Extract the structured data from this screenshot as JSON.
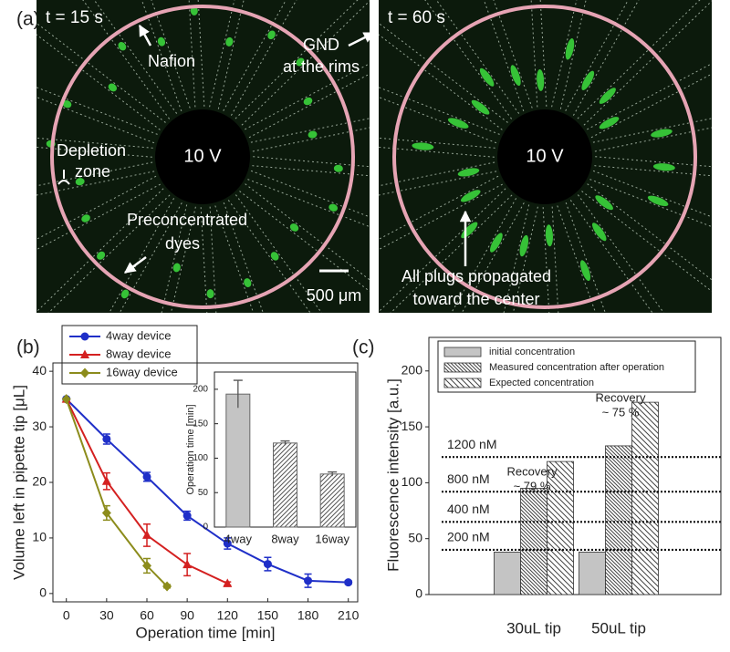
{
  "panel_labels": [
    "(a)",
    "(b)",
    "(c)"
  ],
  "images": [
    {
      "time_label": "t = 15 s",
      "center_label": "10 V",
      "scale_bar": "500 μm",
      "annotations": [
        {
          "lines": [
            "Nafion"
          ]
        },
        {
          "lines": [
            "GND",
            "at the rims"
          ]
        },
        {
          "lines": [
            "Depletion",
            "zone"
          ]
        },
        {
          "lines": [
            "Preconcentrated",
            "dyes"
          ]
        }
      ]
    },
    {
      "time_label": "t = 60 s",
      "center_label": "10 V",
      "annotations": [
        {
          "lines": [
            "All plugs propagated",
            "toward the center"
          ]
        }
      ]
    }
  ],
  "chart_data": [
    {
      "type": "line",
      "x_label": "Operation time [min]",
      "y_label": "Volume left in pipette tip [μL]",
      "xlim": [
        -10,
        217
      ],
      "xticks": [
        0,
        30,
        60,
        90,
        120,
        150,
        180,
        210
      ],
      "ylim": [
        -1.5,
        41.5
      ],
      "yticks": [
        0,
        10,
        20,
        30,
        40
      ],
      "series": [
        {
          "name": "4way device",
          "color": "#1f2fc8",
          "marker": "circle",
          "x": [
            0,
            30,
            60,
            90,
            120,
            150,
            180,
            210
          ],
          "values": [
            35,
            27.8,
            21,
            14,
            9,
            5.3,
            2.3,
            2
          ],
          "errors": [
            0,
            0.9,
            0.8,
            0.8,
            1,
            1.2,
            1.2,
            0.3
          ]
        },
        {
          "name": "8way device",
          "color": "#d42020",
          "marker": "triangle",
          "x": [
            0,
            30,
            60,
            90,
            120
          ],
          "values": [
            35,
            20.2,
            10.5,
            5.2,
            1.8
          ],
          "errors": [
            0,
            1.5,
            2,
            2,
            0.3
          ]
        },
        {
          "name": "16way device",
          "color": "#8c8c1c",
          "marker": "diamond",
          "x": [
            0,
            30,
            60,
            75
          ],
          "values": [
            35,
            14.5,
            5,
            1.3
          ],
          "errors": [
            0,
            1.3,
            1.3,
            0.3
          ]
        }
      ]
    },
    {
      "type": "bar",
      "y_label": "Operation time [min]",
      "categories": [
        "4way",
        "8way",
        "16way"
      ],
      "values": [
        193,
        122,
        77
      ],
      "errors": [
        20,
        3,
        3
      ],
      "fills": [
        "solid",
        "diagonal",
        "diagonal"
      ],
      "ylim": [
        0,
        225
      ],
      "yticks": [
        0,
        50,
        100,
        150,
        200
      ]
    },
    {
      "type": "grouped-bar",
      "y_label": "Fluorescence intensity [a.u.]",
      "categories": [
        "30uL tip",
        "50uL tip"
      ],
      "ylim": [
        0,
        230
      ],
      "yticks": [
        0,
        50,
        100,
        150,
        200
      ],
      "series": [
        {
          "name": "initial concentration",
          "fill": "solid",
          "values": [
            38,
            38
          ]
        },
        {
          "name": "Measured concentration after operation",
          "fill": "backslash-dense",
          "values": [
            95,
            133
          ]
        },
        {
          "name": "Expected concentration",
          "fill": "backslash",
          "values": [
            119,
            172
          ]
        }
      ],
      "reference_lines": [
        {
          "label": "1200 nM",
          "value": 123
        },
        {
          "label": "800 nM",
          "value": 92
        },
        {
          "label": "400 nM",
          "value": 65
        },
        {
          "label": "200 nM",
          "value": 40
        }
      ],
      "annotations": [
        {
          "lines": [
            "Recovery",
            "~ 79 %"
          ]
        },
        {
          "lines": [
            "Recovery",
            "~ 75 %"
          ]
        }
      ]
    }
  ]
}
